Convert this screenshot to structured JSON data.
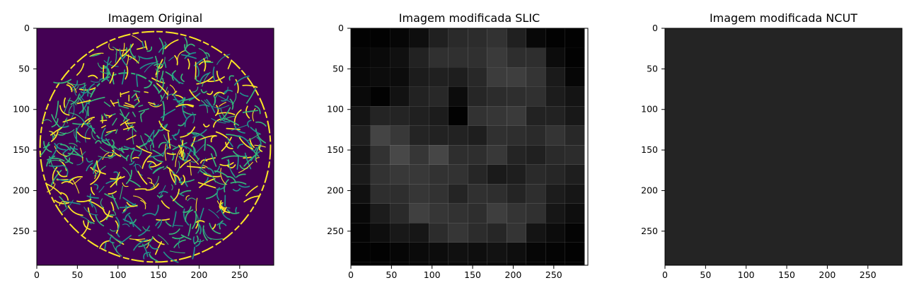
{
  "figure": {
    "background": "#ffffff"
  },
  "chart_data": [
    {
      "type": "heatmap",
      "title": "Imagem Original",
      "xlabel": "",
      "ylabel": "",
      "xlim": [
        0,
        292
      ],
      "ylim": [
        292,
        0
      ],
      "xticks": [
        0,
        50,
        100,
        150,
        200,
        250
      ],
      "yticks": [
        0,
        50,
        100,
        150,
        200,
        250
      ],
      "grid": false,
      "legend": "none",
      "background_color": "#440154",
      "edge_colors": [
        "#fde725",
        "#35b779",
        "#21918c"
      ],
      "description_values": {
        "outer_circle_center": [
          146,
          146
        ],
        "outer_circle_radius": 142,
        "inner_circle_center": [
          110,
          102
        ],
        "inner_circle_radius": 47
      }
    },
    {
      "type": "heatmap",
      "title": "Imagem modificada SLIC",
      "xlabel": "",
      "ylabel": "",
      "xlim": [
        0,
        292
      ],
      "ylim": [
        292,
        0
      ],
      "xticks": [
        0,
        50,
        100,
        150,
        200,
        250
      ],
      "yticks": [
        0,
        50,
        100,
        150,
        200,
        250
      ],
      "grid": false,
      "legend": "none",
      "colormap": "gray",
      "cell_size": 24,
      "values": [
        [
          2,
          2,
          6,
          14,
          32,
          42,
          44,
          50,
          32,
          8,
          2,
          2
        ],
        [
          6,
          10,
          16,
          34,
          48,
          48,
          48,
          58,
          46,
          46,
          12,
          2
        ],
        [
          8,
          12,
          12,
          28,
          32,
          30,
          40,
          60,
          62,
          52,
          26,
          6
        ],
        [
          10,
          2,
          18,
          34,
          40,
          12,
          38,
          44,
          46,
          48,
          28,
          20
        ],
        [
          20,
          36,
          36,
          32,
          28,
          2,
          50,
          54,
          58,
          34,
          34,
          24
        ],
        [
          30,
          68,
          56,
          36,
          34,
          34,
          30,
          48,
          46,
          42,
          52,
          40
        ],
        [
          22,
          50,
          72,
          54,
          70,
          46,
          46,
          56,
          36,
          32,
          42,
          44
        ],
        [
          26,
          50,
          56,
          56,
          50,
          50,
          38,
          26,
          30,
          42,
          38,
          30
        ],
        [
          16,
          46,
          46,
          54,
          50,
          36,
          48,
          46,
          36,
          46,
          28,
          22
        ],
        [
          8,
          28,
          42,
          64,
          54,
          50,
          46,
          62,
          52,
          48,
          22,
          14
        ],
        [
          4,
          14,
          24,
          22,
          44,
          54,
          44,
          38,
          52,
          20,
          12,
          4
        ],
        [
          2,
          2,
          6,
          10,
          12,
          16,
          14,
          18,
          14,
          6,
          4,
          2
        ],
        [
          2,
          2,
          4,
          6,
          8,
          10,
          12,
          10,
          8,
          4,
          2,
          2
        ]
      ]
    },
    {
      "type": "heatmap",
      "title": "Imagem modificada NCUT",
      "xlabel": "",
      "ylabel": "",
      "xlim": [
        0,
        292
      ],
      "ylim": [
        292,
        0
      ],
      "xticks": [
        0,
        50,
        100,
        150,
        200,
        250
      ],
      "yticks": [
        0,
        50,
        100,
        150,
        200,
        250
      ],
      "grid": false,
      "legend": "none",
      "fill_color": "#242424"
    }
  ]
}
